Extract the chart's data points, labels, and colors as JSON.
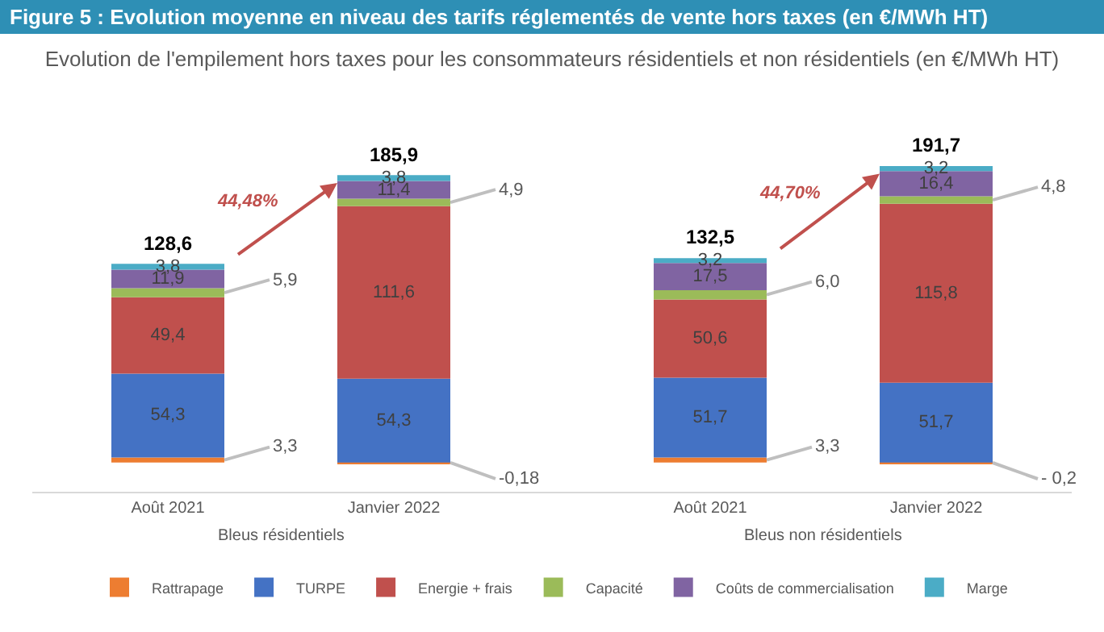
{
  "chart_data": {
    "type": "bar",
    "stacked": true,
    "title": "Figure 5 : Evolution moyenne en niveau des tarifs réglementés de vente hors taxes (en €/MWh HT)",
    "subtitle": "Evolution de l'empilement hors taxes pour les consommateurs résidentiels et non résidentiels (en €/MWh HT)",
    "categories": [
      "Août 2021",
      "Janvier 2022",
      "Août 2021",
      "Janvier 2022"
    ],
    "series": [
      {
        "name": "Rattrapage",
        "color": "#ed7d31",
        "values": [
          3.3,
          -0.18,
          3.3,
          -0.2
        ],
        "value_labels": [
          "3,3",
          "-0,18",
          "3,3",
          "- 0,2"
        ]
      },
      {
        "name": "TURPE",
        "color": "#4472c4",
        "values": [
          54.3,
          54.3,
          51.7,
          51.7
        ],
        "value_labels": [
          "54,3",
          "54,3",
          "51,7",
          "51,7"
        ]
      },
      {
        "name": "Energie + frais",
        "color": "#c0504d",
        "values": [
          49.4,
          111.6,
          50.6,
          115.8
        ],
        "value_labels": [
          "49,4",
          "111,6",
          "50,6",
          "115,8"
        ]
      },
      {
        "name": "Capacité",
        "color": "#9bbb59",
        "values": [
          5.9,
          4.9,
          6.0,
          4.8
        ],
        "value_labels": [
          "5,9",
          "4,9",
          "6,0",
          "4,8"
        ]
      },
      {
        "name": "Coûts de commercialisation",
        "color": "#8064a2",
        "values": [
          11.9,
          11.4,
          17.5,
          16.4
        ],
        "value_labels": [
          "11,9",
          "11,4",
          "17,5",
          "16,4"
        ]
      },
      {
        "name": "Marge",
        "color": "#4bacc6",
        "values": [
          3.8,
          3.8,
          3.2,
          3.2
        ],
        "value_labels": [
          "3,8",
          "3,8",
          "3,2",
          "3,2"
        ]
      }
    ],
    "totals": [
      "128,6",
      "185,9",
      "132,5",
      "191,7"
    ],
    "annotations": [
      "44,48%",
      "44,70%",
      "Bleus résidentiels",
      "Bleus non résidentiels"
    ],
    "legend": "bottom",
    "grid": false
  }
}
